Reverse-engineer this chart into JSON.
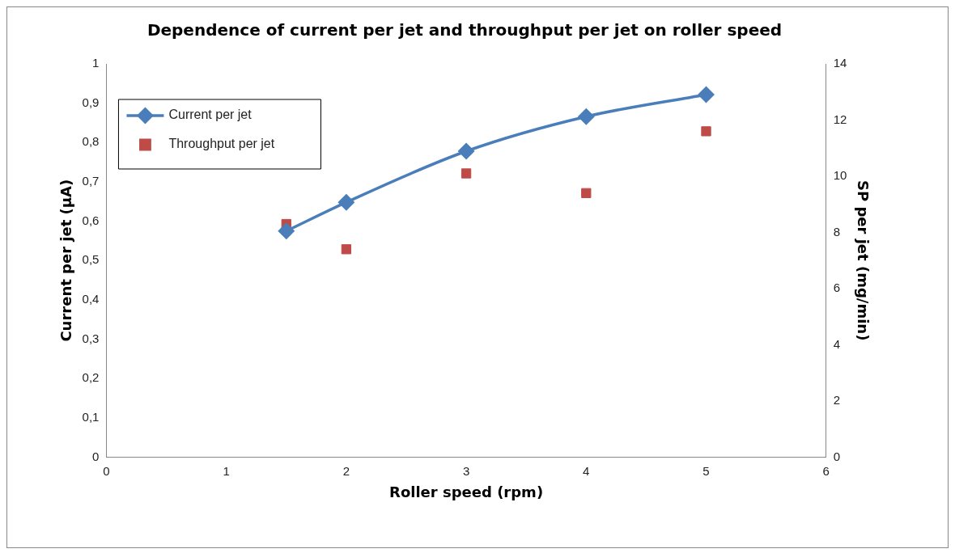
{
  "chart_data": {
    "type": "line",
    "title": "Dependence of current per jet and throughput per jet on roller speed",
    "xlabel": "Roller speed (rpm)",
    "ylabel": "Current per jet (µA)",
    "y2label": "SP per jet (mg/min)",
    "x": [
      1.5,
      2,
      3,
      4,
      5
    ],
    "series": [
      {
        "name": "Current per jet",
        "marker": "diamond",
        "color": "#4a7ebb",
        "values": [
          0.575,
          0.648,
          0.778,
          0.866,
          0.922
        ]
      },
      {
        "name": "Throughput per jet",
        "type": "scatter",
        "marker": "square",
        "axis": "y2",
        "color": "#be4b48",
        "values": [
          8.3,
          7.4,
          10.1,
          9.4,
          11.6
        ]
      }
    ],
    "xlim": [
      0,
      6
    ],
    "xticks": [
      0,
      1,
      2,
      3,
      4,
      5,
      6
    ],
    "ylim": [
      0,
      1
    ],
    "yticks": [
      0,
      {
        "value": 0.1,
        "label": "0,1"
      },
      {
        "value": 0.2,
        "label": "0,2"
      },
      {
        "value": 0.3,
        "label": "0,3"
      },
      {
        "value": 0.4,
        "label": "0,4"
      },
      {
        "value": 0.5,
        "label": "0,5"
      },
      {
        "value": 0.6,
        "label": "0,6"
      },
      {
        "value": 0.7,
        "label": "0,7"
      },
      {
        "value": 0.8,
        "label": "0,8"
      },
      {
        "value": 0.9,
        "label": "0,9"
      },
      1
    ],
    "y2lim": [
      0,
      14
    ],
    "y2ticks": [
      0,
      2,
      4,
      6,
      8,
      10,
      12,
      14
    ],
    "grid": false,
    "legend": "top left"
  }
}
